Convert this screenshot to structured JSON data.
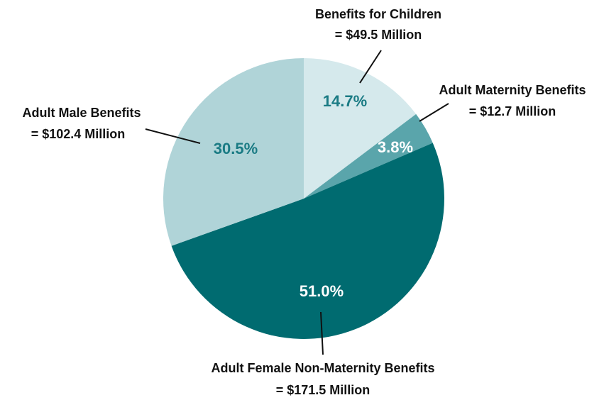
{
  "chart_data": {
    "type": "pie",
    "title": "",
    "slices": [
      {
        "label_line1": "Benefits for Children",
        "label_line2": "= $49.5 Million",
        "amount_millions": 49.5,
        "percent_label": "14.7%",
        "color": "#d5e9ec",
        "pct_color": "#1a7b84"
      },
      {
        "label_line1": "Adult Maternity Benefits",
        "label_line2": "= $12.7 Million",
        "amount_millions": 12.7,
        "percent_label": "3.8%",
        "color": "#5aa5ab",
        "pct_color": "#ffffff"
      },
      {
        "label_line1": "Adult Female Non-Maternity Benefits",
        "label_line2": "= $171.5 Million",
        "amount_millions": 171.5,
        "percent_label": "51.0%",
        "color": "#006b70",
        "pct_color": "#ffffff"
      },
      {
        "label_line1": "Adult Male Benefits",
        "label_line2": "= $102.4 Million",
        "amount_millions": 102.4,
        "percent_label": "30.5%",
        "color": "#b0d4d8",
        "pct_color": "#1a7b84"
      }
    ]
  }
}
